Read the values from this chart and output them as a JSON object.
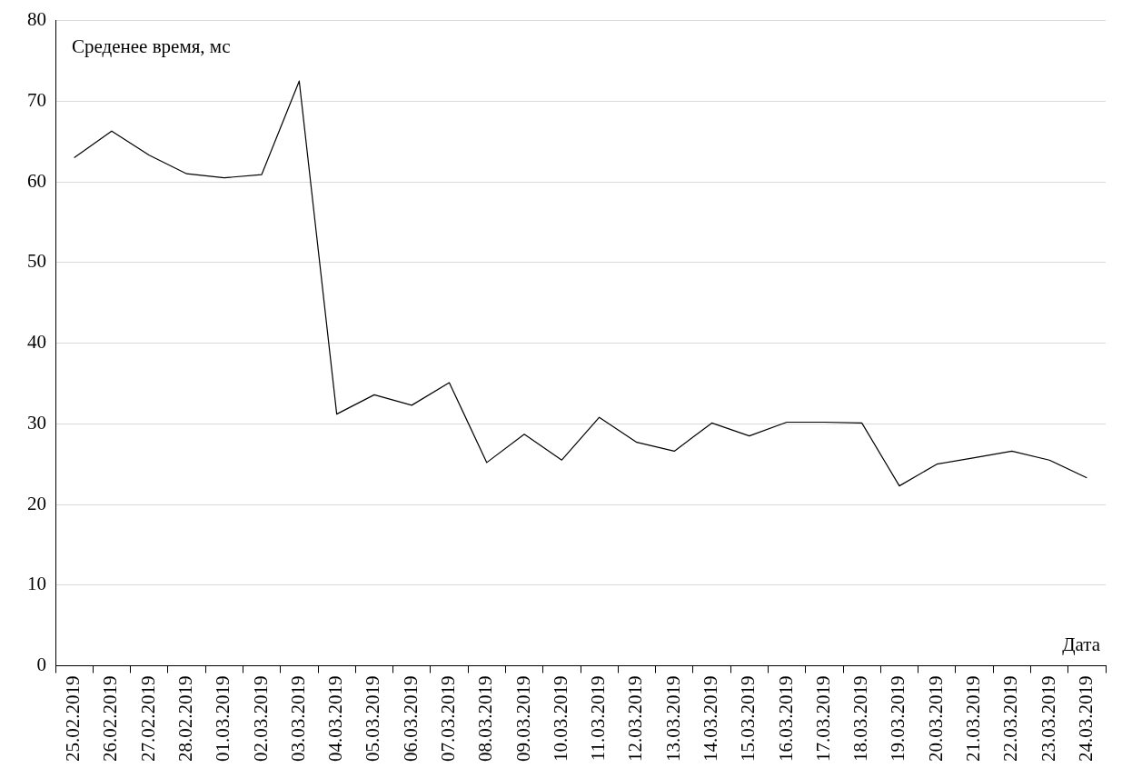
{
  "chart_data": {
    "type": "line",
    "ylabel": "Среденее время, мс",
    "xlabel": "Дата",
    "categories": [
      "25.02.2019",
      "26.02.2019",
      "27.02.2019",
      "28.02.2019",
      "01.03.2019",
      "02.03.2019",
      "03.03.2019",
      "04.03.2019",
      "05.03.2019",
      "06.03.2019",
      "07.03.2019",
      "08.03.2019",
      "09.03.2019",
      "10.03.2019",
      "11.03.2019",
      "12.03.2019",
      "13.03.2019",
      "14.03.2019",
      "15.03.2019",
      "16.03.2019",
      "17.03.2019",
      "18.03.2019",
      "19.03.2019",
      "20.03.2019",
      "21.03.2019",
      "22.03.2019",
      "23.03.2019",
      "24.03.2019"
    ],
    "series": [
      {
        "color": "#000000",
        "values": [
          63.0,
          66.3,
          63.3,
          61.0,
          60.5,
          60.9,
          72.5,
          31.2,
          33.6,
          32.3,
          35.1,
          25.2,
          28.7,
          25.5,
          30.8,
          27.7,
          26.6,
          30.1,
          28.5,
          30.2,
          30.2,
          30.1,
          22.3,
          25.0,
          25.8,
          26.6,
          25.5,
          23.3
        ]
      }
    ],
    "ylim": [
      0,
      80
    ],
    "yticks": [
      0,
      10,
      20,
      30,
      40,
      50,
      60,
      70,
      80
    ],
    "grid": "y",
    "legend": false,
    "marker": "none",
    "line_style": "solid"
  }
}
